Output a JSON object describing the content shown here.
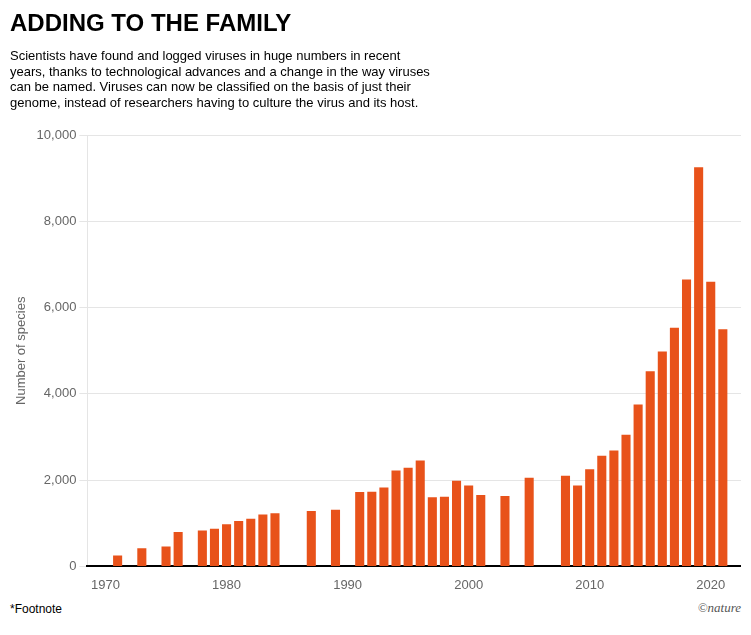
{
  "chart_data": {
    "type": "bar",
    "title": "ADDING TO THE FAMILY",
    "subtitle": "Scientists have found and logged viruses in huge numbers in recent\nyears, thanks to technological advances and a change in the way viruses\ncan be named. Viruses can now be classified on the basis of just their\ngenome, instead of researchers having to culture the virus and its host.",
    "footnote": "*Footnote",
    "copyright": "©nature",
    "ylabel": "Number of species",
    "color": "#E8521A",
    "x": [
      1971,
      1973,
      1975,
      1976,
      1978,
      1979,
      1980,
      1981,
      1982,
      1983,
      1984,
      1987,
      1989,
      1991,
      1992,
      1993,
      1994,
      1995,
      1996,
      1997,
      1998,
      1999,
      2000,
      2001,
      2003,
      2005,
      2008,
      2009,
      2010,
      2011,
      2012,
      2013,
      2014,
      2015,
      2016,
      2017,
      2018,
      2019,
      2020,
      2021
    ],
    "values": [
      250,
      420,
      460,
      800,
      835,
      875,
      975,
      1055,
      1105,
      1205,
      1235,
      1285,
      1315,
      1725,
      1730,
      1830,
      2225,
      2285,
      2455,
      1605,
      1615,
      1985,
      1875,
      1655,
      1635,
      2055,
      2105,
      1875,
      2255,
      2565,
      2685,
      3055,
      3755,
      4525,
      4985,
      5535,
      6655,
      9255,
      6600,
      5500
    ],
    "xlim": [
      1968.5,
      2022.5
    ],
    "xticks": [
      1970,
      1980,
      1990,
      2000,
      2010,
      2020
    ],
    "ylim": [
      0,
      10000
    ],
    "yticks": [
      0,
      {
        "value": 2000,
        "label": "2,000"
      },
      {
        "value": 4000,
        "label": "4,000"
      },
      {
        "value": 6000,
        "label": "6,000"
      },
      {
        "value": 8000,
        "label": "8,000"
      },
      {
        "value": 10000,
        "label": "10,000"
      }
    ],
    "grid": "y"
  }
}
